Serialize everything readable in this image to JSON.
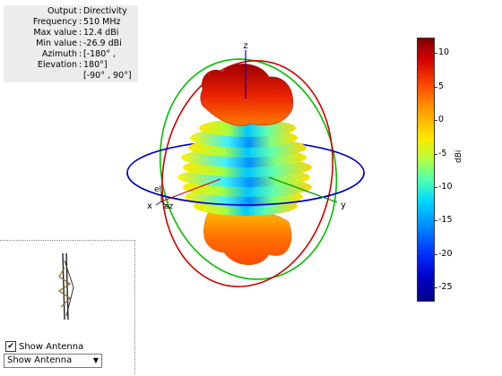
{
  "info": {
    "rows": [
      {
        "key": "Output",
        "value": "Directivity"
      },
      {
        "key": "Frequency",
        "value": "510 MHz"
      },
      {
        "key": "Max value",
        "value": "12.4 dBi"
      },
      {
        "key": "Min value",
        "value": "-26.9 dBi"
      },
      {
        "key": "Azimuth",
        "value": "[-180° ,"
      },
      {
        "key": "Elevation",
        "value": "180°]"
      },
      {
        "key": "",
        "value": "[-90° , 90°]"
      }
    ]
  },
  "axes": {
    "x": "x",
    "y": "y",
    "z": "z",
    "az": "az",
    "el": "el"
  },
  "colorbar": {
    "unit": "dBi",
    "ticks": [
      "10",
      "5",
      "0",
      "-5",
      "-10",
      "-15",
      "-20",
      "-25"
    ],
    "colors": [
      "#7f0000",
      "#ff4a00",
      "#ffe800",
      "#4effb0",
      "#00d8ff",
      "#0030ff",
      "#00008a"
    ]
  },
  "controls": {
    "show_antenna_checkbox_label": "Show Antenna",
    "show_antenna_checkbox_mark": "✔",
    "show_antenna_select_value": "Show Antenna",
    "select_arrow": "▼"
  },
  "colors": {
    "azimuth_ring": "#0000c0",
    "elevation_ring_red": "#d00000",
    "elevation_ring_green": "#00c000",
    "z_axis": "#0000c0",
    "y_axis": "#00a000",
    "x_axis": "#d00000"
  }
}
